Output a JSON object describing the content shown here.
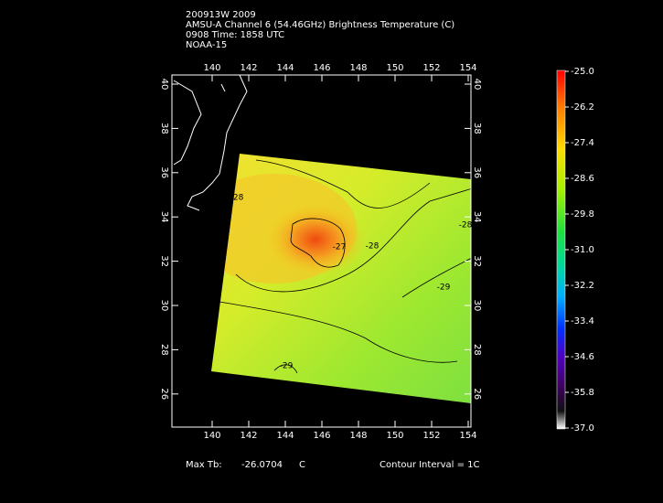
{
  "header": {
    "lines": [
      "200913W 2009",
      "AMSU-A Channel 6 (54.46GHz) Brightness Temperature (C)",
      "0908 Time: 1858 UTC",
      "NOAA-15"
    ]
  },
  "map": {
    "lon_ticks": [
      140,
      142,
      144,
      146,
      148,
      150,
      152,
      154
    ],
    "lat_ticks": [
      26,
      28,
      30,
      32,
      34,
      36,
      38,
      40
    ],
    "contour_labels": [
      "-28",
      "-27",
      "-28",
      "-29",
      "-28",
      "-29"
    ]
  },
  "colorbar": {
    "labels": [
      "-25.0",
      "-26.2",
      "-27.4",
      "-28.6",
      "-29.8",
      "-31.0",
      "-32.2",
      "-33.4",
      "-34.6",
      "-35.8",
      "-37.0"
    ]
  },
  "footer": {
    "max_label": "Max Tb:",
    "max_value": "-26.0704",
    "max_unit": "C",
    "contour_interval": "Contour Interval = 1C"
  }
}
